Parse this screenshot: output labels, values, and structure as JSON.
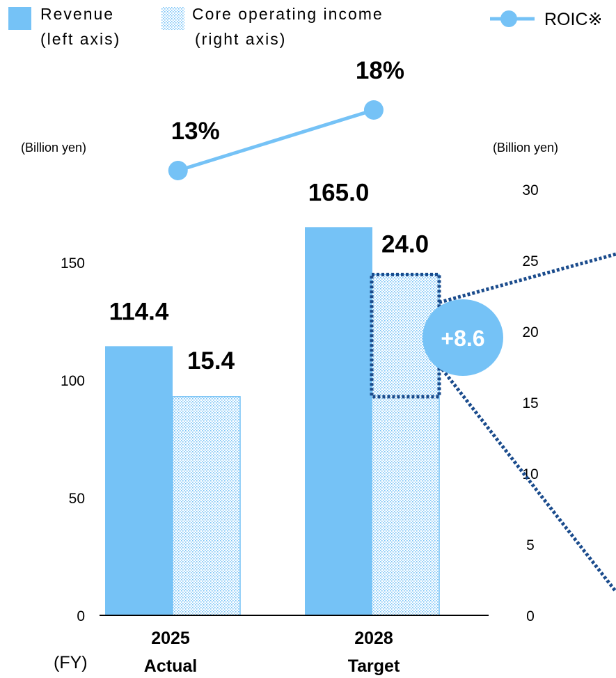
{
  "legend": {
    "revenue_line1": "Revenue",
    "revenue_line2": "(left axis)",
    "core_line1": "Core operating income",
    "core_line2": "(right axis)",
    "roic": "ROIC※"
  },
  "unit_left": "(Billion yen)",
  "unit_right": "(Billion yen)",
  "fy_label": "(FY)",
  "colors": {
    "revenue": "#75c2f6",
    "core_pattern": "#75c2f6",
    "roic_line": "#75c2f6",
    "highlight_border": "#1a4b8c",
    "callout_fill": "#75c2f6",
    "axis": "#000000"
  },
  "callout": {
    "text": "+8.6",
    "value": 8.6
  },
  "chart_data": {
    "type": "bar",
    "categories": [
      {
        "year": "2025",
        "label": "Actual"
      },
      {
        "year": "2028",
        "label": "Target"
      }
    ],
    "series": [
      {
        "name": "Revenue",
        "axis": "left",
        "values": [
          114.4,
          165.0
        ],
        "labels": [
          "114.4",
          "165.0"
        ]
      },
      {
        "name": "Core operating income",
        "axis": "right",
        "values": [
          15.4,
          24.0
        ],
        "labels": [
          "15.4",
          "24.0"
        ]
      },
      {
        "name": "ROIC※",
        "type": "line",
        "values": [
          13,
          18
        ],
        "labels": [
          "13%",
          "18%"
        ]
      }
    ],
    "left_axis": {
      "ylim": [
        0,
        180
      ],
      "ticks": [
        0,
        50,
        100,
        150
      ]
    },
    "right_axis": {
      "ylim": [
        0,
        30
      ],
      "ticks": [
        0,
        5,
        10,
        15,
        20,
        25,
        30
      ]
    }
  }
}
